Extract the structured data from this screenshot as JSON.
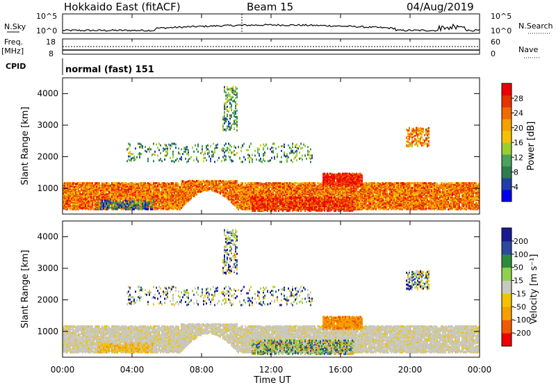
{
  "header": {
    "station": "Hokkaido East (fitACF)",
    "beam": "Beam 15",
    "date": "04/Aug/2019"
  },
  "top_panels": {
    "nsky_label": "N.Sky",
    "nsearch_label": "N.Search",
    "nsky_ticks": [
      "10^5",
      "10^0"
    ],
    "nsearch_ticks": [
      "10^5",
      "10^0"
    ],
    "freq_label_1": "Freq.",
    "freq_label_2": "[MHz]",
    "freq_ticks": [
      "18",
      "8"
    ],
    "nave_label": "Nave",
    "nave_ticks": [
      "60",
      "0"
    ],
    "cpid_label": "CPID",
    "cpid_value": "normal (fast) 151"
  },
  "colors": {
    "power": [
      "#0000ee",
      "#1e3fa8",
      "#2e7d4f",
      "#4aa35a",
      "#9acd32",
      "#f2c200",
      "#f5a000",
      "#f06a00",
      "#e83200",
      "#ee0000"
    ],
    "velocity": [
      "#ee0000",
      "#f05a00",
      "#f5a000",
      "#f2c200",
      "#c8c8bc",
      "#8fd14f",
      "#2e8b3a",
      "#2a4aa0",
      "#1a1a90"
    ]
  },
  "chart_data": [
    {
      "type": "heatmap",
      "name": "power",
      "ylabel": "Slant Range [km]",
      "ylim": [
        180,
        4500
      ],
      "yticks": [
        "4000",
        "3000",
        "2000",
        "1000"
      ],
      "colorbar_label": "Power [dB]",
      "colorbar_ticks": [
        "28",
        "24",
        "20",
        "16",
        "12",
        "8",
        "4"
      ],
      "colorbar_range": [
        0,
        32
      ]
    },
    {
      "type": "heatmap",
      "name": "velocity",
      "ylabel": "Slant Range [km]",
      "ylim": [
        180,
        4500
      ],
      "yticks": [
        "4000",
        "3000",
        "2000",
        "1000"
      ],
      "colorbar_label": "Velocity [m s⁻¹]",
      "colorbar_ticks": [
        "200",
        "100",
        "50",
        "15",
        "-15",
        "-50",
        "-100",
        "-200"
      ]
    }
  ],
  "xaxis": {
    "ticks": [
      "00:00",
      "04:00",
      "08:00",
      "12:00",
      "16:00",
      "20:00",
      "00:00"
    ],
    "label": "Time UT"
  }
}
